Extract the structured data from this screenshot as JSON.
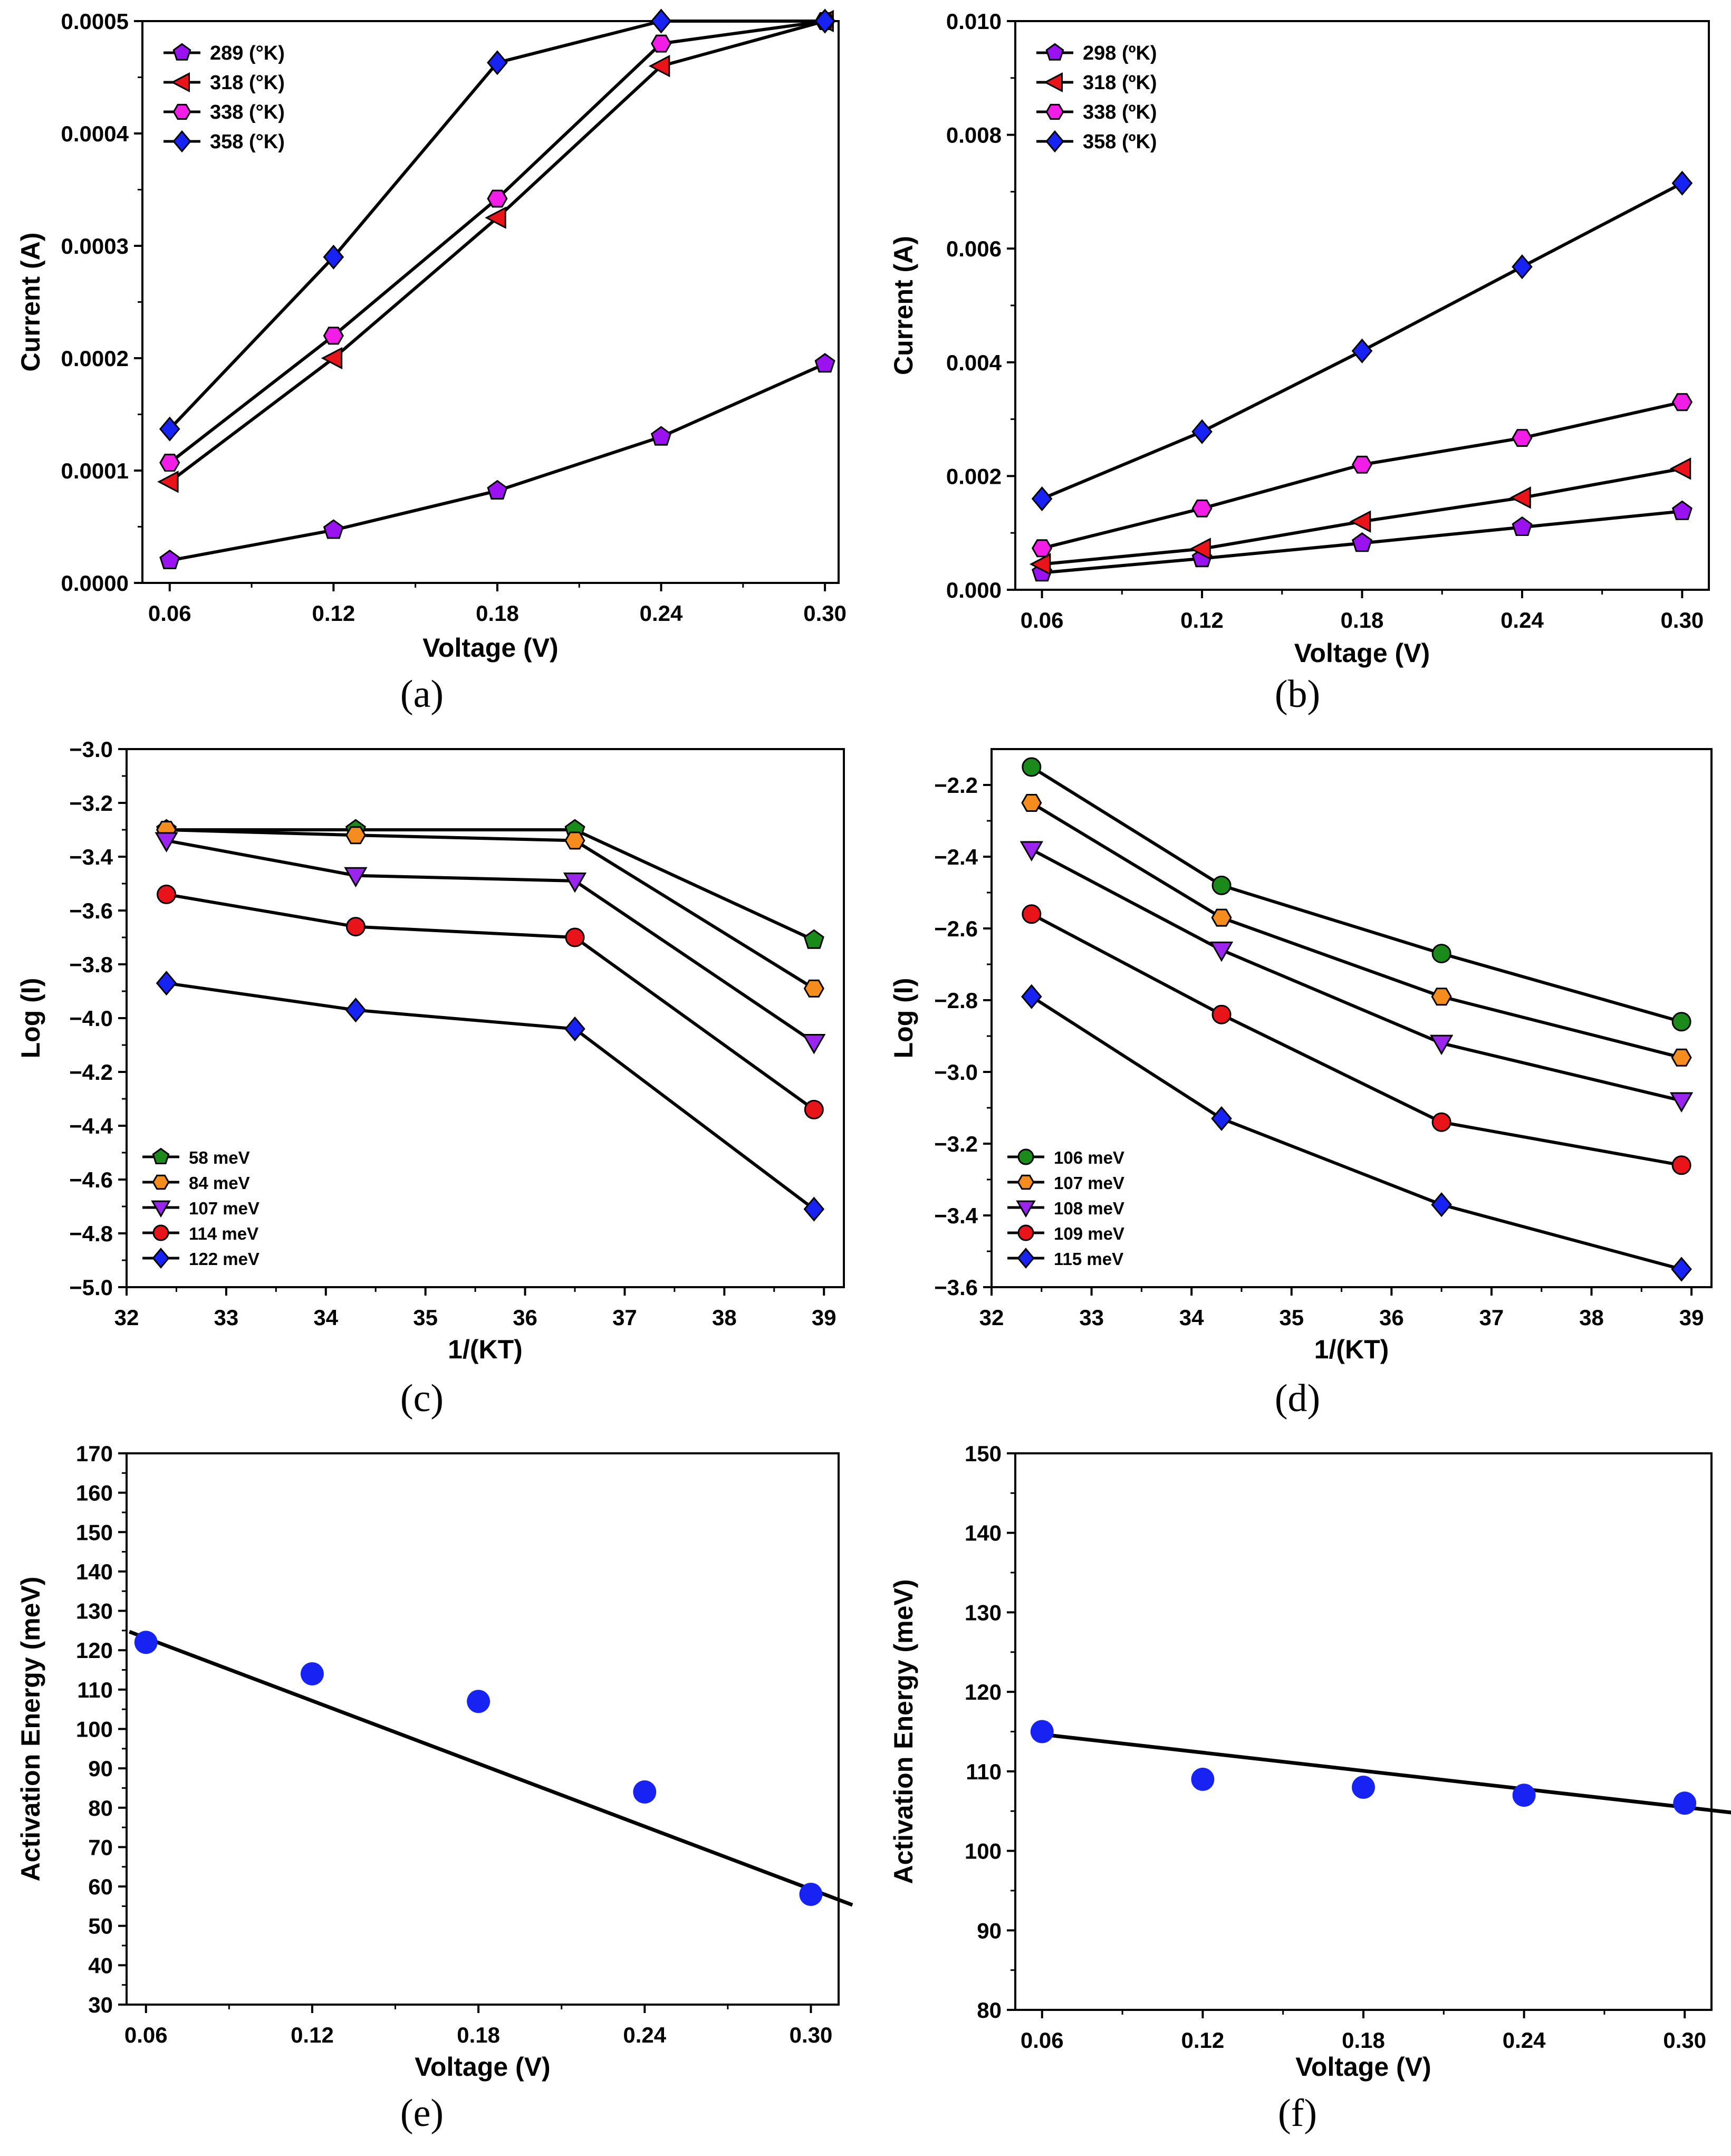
{
  "palette": {
    "purple": "#9a12f0",
    "red": "#e8141a",
    "magenta": "#f21ee8",
    "blue": "#1723f2",
    "green": "#1a8a1a",
    "orange": "#f58c1e",
    "violet": "#9b24ee",
    "black": "#000000"
  },
  "chart_data": [
    {
      "id": "a",
      "panel_label": "(a)",
      "type": "line",
      "xlabel": "Voltage (V)",
      "ylabel": "Current (A)",
      "xlim": [
        0.05,
        0.305
      ],
      "ylim": [
        0,
        0.0005
      ],
      "xticks": [
        0.06,
        0.12,
        0.18,
        0.24,
        0.3
      ],
      "xtick_labels": [
        "0.06",
        "0.12",
        "0.18",
        "0.24",
        "0.30"
      ],
      "yticks": [
        0,
        0.0001,
        0.0002,
        0.0003,
        0.0004,
        0.0005
      ],
      "ytick_labels": [
        "0.0000",
        "0.0001",
        "0.0002",
        "0.0003",
        "0.0004",
        "0.0005"
      ],
      "legend_pos": "top-left",
      "series": [
        {
          "name": "289 (°K)",
          "marker": "pentagon",
          "color": "#9a12f0",
          "x": [
            0.06,
            0.12,
            0.18,
            0.24,
            0.3
          ],
          "y": [
            2e-05,
            4.7e-05,
            8.2e-05,
            0.00013,
            0.000195
          ]
        },
        {
          "name": "318 (°K)",
          "marker": "triangle-left",
          "color": "#e8141a",
          "x": [
            0.06,
            0.12,
            0.18,
            0.24,
            0.3
          ],
          "y": [
            9e-05,
            0.0002,
            0.000325,
            0.00046,
            0.0005
          ]
        },
        {
          "name": "338 (°K)",
          "marker": "hexagon",
          "color": "#f21ee8",
          "x": [
            0.06,
            0.12,
            0.18,
            0.24,
            0.3
          ],
          "y": [
            0.000107,
            0.00022,
            0.000342,
            0.00048,
            0.0005
          ]
        },
        {
          "name": "358 (°K)",
          "marker": "diamond",
          "color": "#1723f2",
          "x": [
            0.06,
            0.12,
            0.18,
            0.24,
            0.3
          ],
          "y": [
            0.000137,
            0.00029,
            0.000463,
            0.0005,
            0.0005
          ]
        }
      ]
    },
    {
      "id": "b",
      "panel_label": "(b)",
      "type": "line",
      "xlabel": "Voltage (V)",
      "ylabel": "Current (A)",
      "xlim": [
        0.05,
        0.31
      ],
      "ylim": [
        0,
        0.01
      ],
      "xticks": [
        0.06,
        0.12,
        0.18,
        0.24,
        0.3
      ],
      "xtick_labels": [
        "0.06",
        "0.12",
        "0.18",
        "0.24",
        "0.30"
      ],
      "yticks": [
        0,
        0.002,
        0.004,
        0.006,
        0.008,
        0.01
      ],
      "ytick_labels": [
        "0.000",
        "0.002",
        "0.004",
        "0.006",
        "0.008",
        "0.010"
      ],
      "legend_pos": "top-left",
      "series": [
        {
          "name": "298 (ºK)",
          "marker": "pentagon",
          "color": "#9a12f0",
          "x": [
            0.06,
            0.12,
            0.18,
            0.24,
            0.3
          ],
          "y": [
            0.0003,
            0.00055,
            0.00082,
            0.0011,
            0.00138
          ]
        },
        {
          "name": "318 (ºK)",
          "marker": "triangle-left",
          "color": "#e8141a",
          "x": [
            0.06,
            0.12,
            0.18,
            0.24,
            0.3
          ],
          "y": [
            0.00045,
            0.00072,
            0.0012,
            0.00162,
            0.00213
          ]
        },
        {
          "name": "338 (ºK)",
          "marker": "hexagon",
          "color": "#f21ee8",
          "x": [
            0.06,
            0.12,
            0.18,
            0.24,
            0.3
          ],
          "y": [
            0.00073,
            0.00143,
            0.0022,
            0.00267,
            0.0033
          ]
        },
        {
          "name": "358 (ºK)",
          "marker": "diamond",
          "color": "#1723f2",
          "x": [
            0.06,
            0.12,
            0.18,
            0.24,
            0.3
          ],
          "y": [
            0.0016,
            0.00278,
            0.0042,
            0.00568,
            0.00715
          ]
        }
      ]
    },
    {
      "id": "c",
      "panel_label": "(c)",
      "type": "line",
      "xlabel": "1/(KT)",
      "ylabel": "Log (I)",
      "xlim": [
        32,
        39.2
      ],
      "ylim": [
        -5.0,
        -3.0
      ],
      "xticks": [
        32,
        33,
        34,
        35,
        36,
        37,
        38,
        39
      ],
      "xtick_labels": [
        "32",
        "33",
        "34",
        "35",
        "36",
        "37",
        "38",
        "39"
      ],
      "yticks": [
        -5.0,
        -4.8,
        -4.6,
        -4.4,
        -4.2,
        -4.0,
        -3.8,
        -3.6,
        -3.4,
        -3.2,
        -3.0
      ],
      "ytick_labels": [
        "−5.0",
        "−4.8",
        "−4.6",
        "−4.4",
        "−4.2",
        "−4.0",
        "−3.8",
        "−3.6",
        "−3.4",
        "−3.2",
        "−3.0"
      ],
      "legend_pos": "bottom-left",
      "series": [
        {
          "name": "58 meV",
          "marker": "pentagon",
          "color": "#1a8a1a",
          "x": [
            32.4,
            34.3,
            36.5,
            38.9
          ],
          "y": [
            -3.3,
            -3.3,
            -3.3,
            -3.71
          ]
        },
        {
          "name": "84 meV",
          "marker": "hexagon",
          "color": "#f58c1e",
          "x": [
            32.4,
            34.3,
            36.5,
            38.9
          ],
          "y": [
            -3.3,
            -3.32,
            -3.34,
            -3.89
          ]
        },
        {
          "name": "107 meV",
          "marker": "triangle-down",
          "color": "#9b24ee",
          "x": [
            32.4,
            34.3,
            36.5,
            38.9
          ],
          "y": [
            -3.34,
            -3.47,
            -3.49,
            -4.09
          ]
        },
        {
          "name": "114 meV",
          "marker": "circle",
          "color": "#e8141a",
          "x": [
            32.4,
            34.3,
            36.5,
            38.9
          ],
          "y": [
            -3.54,
            -3.66,
            -3.7,
            -4.34
          ]
        },
        {
          "name": "122 meV",
          "marker": "diamond",
          "color": "#1723f2",
          "x": [
            32.4,
            34.3,
            36.5,
            38.9
          ],
          "y": [
            -3.87,
            -3.97,
            -4.04,
            -4.71
          ]
        }
      ]
    },
    {
      "id": "d",
      "panel_label": "(d)",
      "type": "line",
      "xlabel": "1/(KT)",
      "ylabel": "Log (I)",
      "xlim": [
        32,
        39.2
      ],
      "ylim": [
        -3.6,
        -2.1
      ],
      "xticks": [
        32,
        33,
        34,
        35,
        36,
        37,
        38,
        39
      ],
      "xtick_labels": [
        "32",
        "33",
        "34",
        "35",
        "36",
        "37",
        "38",
        "39"
      ],
      "yticks": [
        -3.6,
        -3.4,
        -3.2,
        -3.0,
        -2.8,
        -2.6,
        -2.4,
        -2.2
      ],
      "ytick_labels": [
        "−3.6",
        "−3.4",
        "−3.2",
        "−3.0",
        "−2.8",
        "−2.6",
        "−2.4",
        "−2.2"
      ],
      "legend_pos": "bottom-left",
      "series": [
        {
          "name": "106 meV",
          "marker": "circle",
          "color": "#1a8a1a",
          "x": [
            32.4,
            34.3,
            36.5,
            38.9
          ],
          "y": [
            -2.15,
            -2.48,
            -2.67,
            -2.86
          ]
        },
        {
          "name": "107 meV",
          "marker": "hexagon",
          "color": "#f58c1e",
          "x": [
            32.4,
            34.3,
            36.5,
            38.9
          ],
          "y": [
            -2.25,
            -2.57,
            -2.79,
            -2.96
          ]
        },
        {
          "name": "108 meV",
          "marker": "triangle-down",
          "color": "#9b24ee",
          "x": [
            32.4,
            34.3,
            36.5,
            38.9
          ],
          "y": [
            -2.38,
            -2.66,
            -2.92,
            -3.08
          ]
        },
        {
          "name": "109 meV",
          "marker": "circle",
          "color": "#e8141a",
          "x": [
            32.4,
            34.3,
            36.5,
            38.9
          ],
          "y": [
            -2.56,
            -2.84,
            -3.14,
            -3.26
          ]
        },
        {
          "name": "115 meV",
          "marker": "diamond",
          "color": "#1723f2",
          "x": [
            32.4,
            34.3,
            36.5,
            38.9
          ],
          "y": [
            -2.79,
            -3.13,
            -3.37,
            -3.55
          ]
        }
      ]
    },
    {
      "id": "e",
      "panel_label": "(e)",
      "type": "scatter",
      "xlabel": "Voltage (V)",
      "ylabel": "Activation Energy (meV)",
      "xlim": [
        0.053,
        0.31
      ],
      "ylim": [
        30,
        170
      ],
      "xticks": [
        0.06,
        0.12,
        0.18,
        0.24,
        0.3
      ],
      "xtick_labels": [
        "0.06",
        "0.12",
        "0.18",
        "0.24",
        "0.30"
      ],
      "yticks": [
        30,
        40,
        50,
        60,
        70,
        80,
        90,
        100,
        110,
        120,
        130,
        140,
        150,
        160,
        170
      ],
      "ytick_labels": [
        "30",
        "40",
        "50",
        "60",
        "70",
        "80",
        "90",
        "100",
        "110",
        "120",
        "130",
        "140",
        "150",
        "160",
        "170"
      ],
      "points": {
        "color": "#1723f2",
        "x": [
          0.06,
          0.12,
          0.18,
          0.24,
          0.3
        ],
        "y": [
          122,
          114,
          107,
          84,
          58
        ]
      },
      "fit": {
        "color": "#000000",
        "x": [
          0.054,
          0.315
        ],
        "y": [
          124.7,
          55.3
        ]
      }
    },
    {
      "id": "f",
      "panel_label": "(f)",
      "type": "scatter",
      "xlabel": "Voltage (V)",
      "ylabel": "Activation Energy (meV)",
      "xlim": [
        0.05,
        0.31
      ],
      "ylim": [
        80,
        150
      ],
      "xticks": [
        0.06,
        0.12,
        0.18,
        0.24,
        0.3
      ],
      "xtick_labels": [
        "0.06",
        "0.12",
        "0.18",
        "0.24",
        "0.30"
      ],
      "yticks": [
        80,
        90,
        100,
        110,
        120,
        130,
        140,
        150
      ],
      "ytick_labels": [
        "80",
        "90",
        "100",
        "110",
        "120",
        "130",
        "140",
        "150"
      ],
      "points": {
        "color": "#1723f2",
        "x": [
          0.06,
          0.12,
          0.18,
          0.24,
          0.3
        ],
        "y": [
          115,
          109,
          108,
          107,
          106
        ]
      },
      "fit": {
        "color": "#000000",
        "x": [
          0.056,
          0.318
        ],
        "y": [
          114.8,
          104.8
        ]
      }
    }
  ]
}
